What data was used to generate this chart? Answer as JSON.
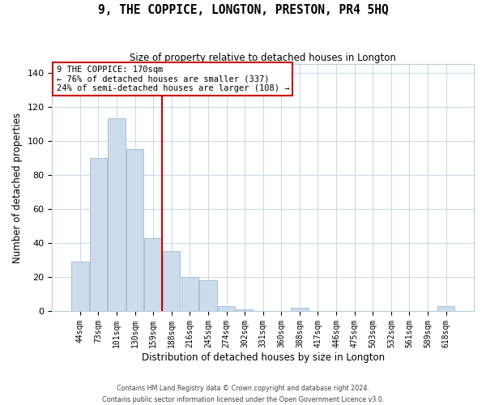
{
  "title": "9, THE COPPICE, LONGTON, PRESTON, PR4 5HQ",
  "subtitle": "Size of property relative to detached houses in Longton",
  "xlabel": "Distribution of detached houses by size in Longton",
  "ylabel": "Number of detached properties",
  "bar_color": "#ccdcec",
  "bar_edgecolor": "#a8c0d4",
  "vline_color": "#cc0000",
  "categories": [
    "44sqm",
    "73sqm",
    "101sqm",
    "130sqm",
    "159sqm",
    "188sqm",
    "216sqm",
    "245sqm",
    "274sqm",
    "302sqm",
    "331sqm",
    "360sqm",
    "388sqm",
    "417sqm",
    "446sqm",
    "475sqm",
    "503sqm",
    "532sqm",
    "561sqm",
    "589sqm",
    "618sqm"
  ],
  "values": [
    29,
    90,
    113,
    95,
    43,
    35,
    20,
    18,
    3,
    1,
    0,
    0,
    2,
    0,
    0,
    0,
    0,
    0,
    0,
    0,
    3
  ],
  "ylim": [
    0,
    145
  ],
  "yticks": [
    0,
    20,
    40,
    60,
    80,
    100,
    120,
    140
  ],
  "annotation_title": "9 THE COPPICE: 170sqm",
  "annotation_line1": "← 76% of detached houses are smaller (337)",
  "annotation_line2": "24% of semi-detached houses are larger (108) →",
  "footer1": "Contains HM Land Registry data © Crown copyright and database right 2024.",
  "footer2": "Contains public sector information licensed under the Open Government Licence v3.0.",
  "background_color": "#ffffff",
  "grid_color": "#c8d8e8",
  "vline_index": 4
}
